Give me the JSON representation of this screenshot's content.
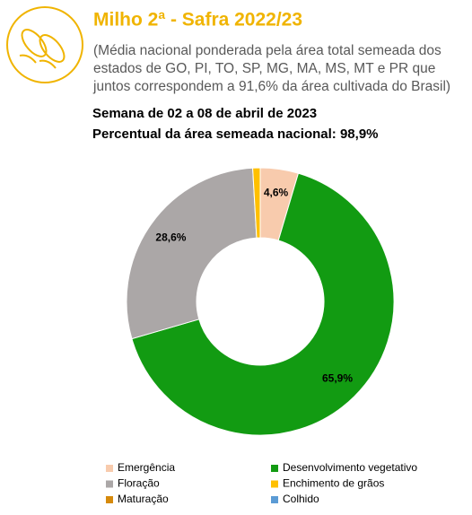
{
  "chart_data": {
    "type": "pie",
    "title": "Milho 2ª - Safra 2022/23",
    "subtitle": [
      "(Média nacional ponderada pela área total semeada dos",
      "estados de GO, PI, TO, SP, MG, MA, MS, MT e PR que",
      "juntos correspondem a 91,6% da área cultivada do Brasil)"
    ],
    "week": "Semana de 02 a 08 de abril de 2023",
    "sown": "Percentual da área semeada nacional: 98,9%",
    "categories": [
      "Emergência",
      "Desenvolvimento vegetativo",
      "Floração",
      "Enchimento de grãos",
      "Maturação",
      "Colhido"
    ],
    "values": [
      4.6,
      65.9,
      28.6,
      0.9,
      0,
      0
    ],
    "value_labels": [
      "4,6%",
      "65,9%",
      "28,6%",
      null,
      null,
      null
    ],
    "colors": [
      "#f8cbad",
      "#129b12",
      "#aba7a7",
      "#ffc000",
      "#d68a0c",
      "#5b9bd5"
    ]
  }
}
